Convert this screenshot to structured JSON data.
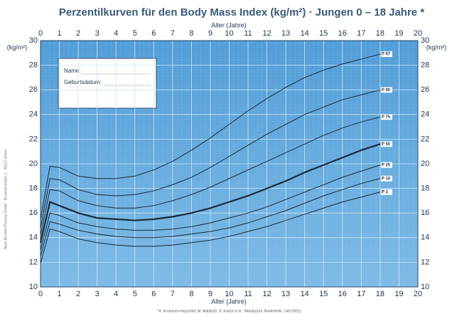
{
  "chart_data": {
    "type": "line",
    "title": "Perzentilkurven für den Body Mass Index (kg/m²) · Jungen 0 – 18 Jahre *",
    "x_label": "Alter (Jahre)",
    "y_label": "(kg/m²)",
    "footnote": "* K. Kromeyer-Hauschild, M. Wabitsch, D. Kunze et al.: Monatsschr. Kinderheilk. 149 (2001)",
    "side_note": "Novo Nordisk Pharma GmbH · Brucknerstraße 1 · 55127 Mainz",
    "form": {
      "name": "Name:",
      "birth": "Geburtsdatum:"
    },
    "x": [
      0,
      0.5,
      1,
      2,
      3,
      4,
      5,
      6,
      7,
      8,
      9,
      10,
      11,
      12,
      13,
      14,
      15,
      16,
      17,
      18
    ],
    "xlim": [
      0,
      20
    ],
    "xticks": [
      0,
      1,
      2,
      3,
      4,
      5,
      6,
      7,
      8,
      9,
      10,
      11,
      12,
      13,
      14,
      15,
      16,
      17,
      18,
      19,
      20
    ],
    "ylim": [
      10,
      30
    ],
    "yticks": [
      10,
      12,
      14,
      16,
      18,
      20,
      22,
      24,
      26,
      28,
      30
    ],
    "grid": true,
    "series": [
      {
        "name": "P 97",
        "color": "#1a2a3a",
        "width": 1,
        "values": [
          15.5,
          19.8,
          19.7,
          19.0,
          18.8,
          18.8,
          19.0,
          19.5,
          20.2,
          21.1,
          22.1,
          23.2,
          24.3,
          25.3,
          26.2,
          27.0,
          27.6,
          28.1,
          28.5,
          28.9
        ]
      },
      {
        "name": "P 90",
        "color": "#1a2a3a",
        "width": 1,
        "values": [
          14.8,
          18.8,
          18.7,
          17.9,
          17.5,
          17.4,
          17.5,
          17.8,
          18.3,
          18.9,
          19.7,
          20.6,
          21.5,
          22.4,
          23.2,
          24.0,
          24.6,
          25.2,
          25.6,
          26.0
        ]
      },
      {
        "name": "P 75",
        "color": "#1a2a3a",
        "width": 1,
        "values": [
          14.2,
          17.9,
          17.8,
          17.0,
          16.6,
          16.4,
          16.4,
          16.6,
          17.0,
          17.5,
          18.1,
          18.8,
          19.5,
          20.2,
          20.9,
          21.6,
          22.3,
          22.9,
          23.4,
          23.8
        ]
      },
      {
        "name": "P 50",
        "color": "#1a2a3a",
        "width": 2.2,
        "values": [
          13.6,
          16.9,
          16.6,
          16.0,
          15.6,
          15.5,
          15.4,
          15.5,
          15.7,
          16.0,
          16.4,
          16.9,
          17.4,
          18.0,
          18.6,
          19.3,
          19.9,
          20.5,
          21.1,
          21.6
        ]
      },
      {
        "name": "P 25",
        "color": "#1a2a3a",
        "width": 1,
        "values": [
          13.0,
          16.0,
          15.8,
          15.2,
          14.9,
          14.7,
          14.6,
          14.6,
          14.7,
          14.9,
          15.2,
          15.6,
          16.0,
          16.5,
          17.1,
          17.7,
          18.3,
          18.9,
          19.4,
          19.9
        ]
      },
      {
        "name": "P 10",
        "color": "#1a2a3a",
        "width": 1,
        "values": [
          12.5,
          15.3,
          15.1,
          14.6,
          14.3,
          14.1,
          14.0,
          14.0,
          14.1,
          14.3,
          14.5,
          14.8,
          15.2,
          15.7,
          16.2,
          16.8,
          17.4,
          17.9,
          18.4,
          18.8
        ]
      },
      {
        "name": "P 3",
        "color": "#1a2a3a",
        "width": 1,
        "values": [
          11.9,
          14.7,
          14.5,
          13.9,
          13.6,
          13.4,
          13.3,
          13.3,
          13.4,
          13.6,
          13.8,
          14.1,
          14.5,
          14.9,
          15.4,
          15.9,
          16.4,
          16.9,
          17.3,
          17.7
        ]
      }
    ]
  }
}
